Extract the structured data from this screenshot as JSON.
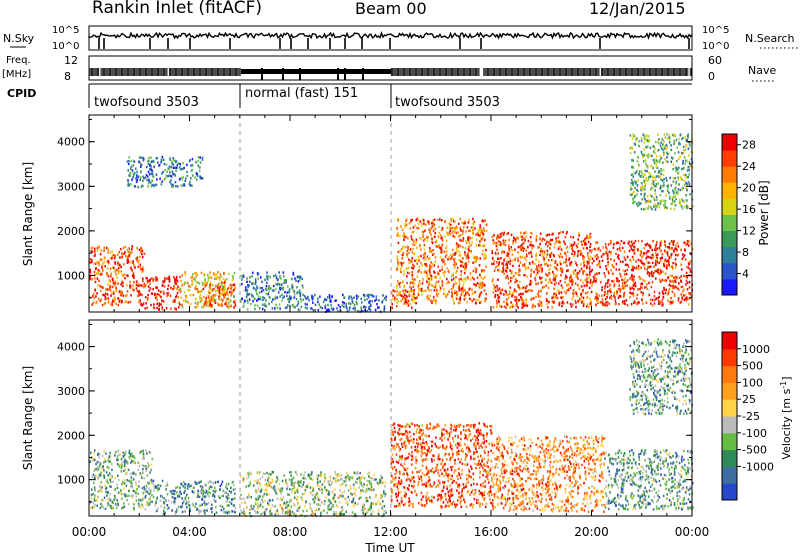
{
  "header": {
    "station": "Rankin Inlet (fitACF)",
    "beam": "Beam 00",
    "date": "12/Jan/2015"
  },
  "top_panels": {
    "nsky_label": "N.Sky",
    "nsky_ticks": [
      "10^5",
      "10^0"
    ],
    "nsearch_label": "N.Search",
    "nsearch_ticks": [
      "10^5",
      "10^0"
    ],
    "freq_label": "Freq.",
    "freq_unit": "[MHz]",
    "freq_ticks": [
      "12",
      "8"
    ],
    "nave_label": "Nave",
    "nave_ticks": [
      "60",
      "0"
    ],
    "cpid_label": "CPID",
    "cpid_segments": [
      {
        "name": "twofsound",
        "id": "3503",
        "start": 0,
        "end": 6
      },
      {
        "name": "normal (fast)",
        "id": "151",
        "start": 6,
        "end": 12
      },
      {
        "name": "twofsound",
        "id": "3503",
        "start": 12,
        "end": 24
      }
    ]
  },
  "chart_data": [
    {
      "type": "heatmap",
      "name": "Power",
      "xlabel": "",
      "ylabel": "Slant Range [km]",
      "xlim": [
        0,
        24
      ],
      "ylim": [
        180,
        4600
      ],
      "yticks": [
        "1000",
        "2000",
        "3000",
        "4000"
      ],
      "colorbar": {
        "label": "Power [dB]",
        "ticks": [
          "4",
          "8",
          "12",
          "16",
          "20",
          "24",
          "28"
        ],
        "range": [
          0,
          30
        ],
        "colors": [
          "#1a1aff",
          "#2a55c8",
          "#2e7f99",
          "#3a9a5a",
          "#6cc24a",
          "#d6d214",
          "#ffb400",
          "#ff7d00",
          "#ff3d00",
          "#ee0000"
        ]
      },
      "echo_regions": [
        {
          "t0": 0.0,
          "t1": 2.2,
          "r0": 350,
          "r1": 1700,
          "level": 0.85
        },
        {
          "t0": 2.2,
          "t1": 3.6,
          "r0": 250,
          "r1": 1000,
          "level": 0.95
        },
        {
          "t0": 3.6,
          "t1": 5.8,
          "r0": 300,
          "r1": 1100,
          "level": 0.6
        },
        {
          "t0": 4.5,
          "t1": 5.8,
          "r0": 300,
          "r1": 900,
          "level": 0.8
        },
        {
          "t0": 6.0,
          "t1": 8.5,
          "r0": 250,
          "r1": 1100,
          "level": 0.25
        },
        {
          "t0": 8.5,
          "t1": 11.8,
          "r0": 200,
          "r1": 600,
          "level": 0.15
        },
        {
          "t0": 12.0,
          "t1": 13.0,
          "r0": 300,
          "r1": 700,
          "level": 0.8
        },
        {
          "t0": 12.2,
          "t1": 15.8,
          "r0": 400,
          "r1": 2300,
          "level": 0.78
        },
        {
          "t0": 16.0,
          "t1": 20.0,
          "r0": 300,
          "r1": 2000,
          "level": 0.85
        },
        {
          "t0": 20.0,
          "t1": 24.0,
          "r0": 350,
          "r1": 1800,
          "level": 0.9
        },
        {
          "t0": 1.5,
          "t1": 4.5,
          "r0": 3000,
          "r1": 3700,
          "level": 0.25
        },
        {
          "t0": 21.5,
          "t1": 24.0,
          "r0": 2500,
          "r1": 4200,
          "level": 0.4
        }
      ]
    },
    {
      "type": "heatmap",
      "name": "Velocity",
      "xlabel": "Time UT",
      "ylabel": "Slant Range [km]",
      "xlim": [
        0,
        24
      ],
      "ylim": [
        180,
        4600
      ],
      "xticks": [
        "00:00",
        "04:00",
        "08:00",
        "12:00",
        "16:00",
        "20:00",
        "00:00"
      ],
      "yticks": [
        "1000",
        "2000",
        "3000",
        "4000"
      ],
      "colorbar": {
        "label": "Velocity [m s^-1]",
        "ticks": [
          "1000",
          "500",
          "100",
          "25",
          "-25",
          "-100",
          "-500",
          "-1000"
        ],
        "range": [
          -1000,
          1000
        ],
        "colors": [
          "#2846c8",
          "#3c6ea0",
          "#2f8a5a",
          "#66bb44",
          "#bbbbbb",
          "#ffd24a",
          "#ffa020",
          "#ff7a10",
          "#ff3a00",
          "#ee0000"
        ]
      },
      "echo_regions": [
        {
          "t0": 0.0,
          "t1": 2.5,
          "r0": 350,
          "r1": 1700,
          "level": 0.35
        },
        {
          "t0": 2.5,
          "t1": 5.8,
          "r0": 250,
          "r1": 1000,
          "level": 0.25
        },
        {
          "t0": 6.0,
          "t1": 11.8,
          "r0": 200,
          "r1": 1200,
          "level": 0.4
        },
        {
          "t0": 12.0,
          "t1": 16.0,
          "r0": 400,
          "r1": 2300,
          "level": 0.82
        },
        {
          "t0": 16.0,
          "t1": 20.5,
          "r0": 300,
          "r1": 2000,
          "level": 0.7
        },
        {
          "t0": 20.5,
          "t1": 24.0,
          "r0": 350,
          "r1": 1700,
          "level": 0.3
        },
        {
          "t0": 21.5,
          "t1": 24.0,
          "r0": 2500,
          "r1": 4200,
          "level": 0.3
        }
      ]
    }
  ]
}
